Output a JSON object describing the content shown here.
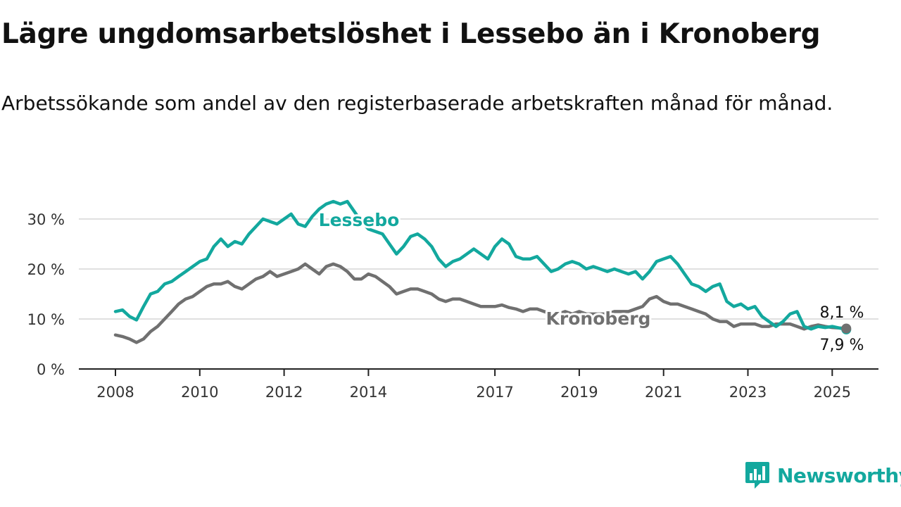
{
  "chart_data": {
    "type": "line",
    "title": "Lägre ungdomsarbetslöshet i Lessebo än i Kronoberg",
    "subtitle": "Arbetssökande som andel av den registerbaserade arbetskraften månad för månad.",
    "x_ticks": [
      "2008",
      "2010",
      "2012",
      "2014",
      "2017",
      "2019",
      "2021",
      "2023",
      "2025"
    ],
    "y_ticks": [
      "0 %",
      "10 %",
      "20 %",
      "30 %"
    ],
    "ylim": [
      0,
      30
    ],
    "grid": true,
    "series": [
      {
        "name": "Lessebo",
        "color": "#13a89e",
        "end_label": "7,9 %",
        "points": [
          [
            "2008-01",
            11.5
          ],
          [
            "2008-03",
            11.8
          ],
          [
            "2008-05",
            10.5
          ],
          [
            "2008-07",
            9.8
          ],
          [
            "2008-09",
            12.5
          ],
          [
            "2008-11",
            15.0
          ],
          [
            "2009-01",
            15.5
          ],
          [
            "2009-03",
            17.0
          ],
          [
            "2009-05",
            17.5
          ],
          [
            "2009-07",
            18.5
          ],
          [
            "2009-09",
            19.5
          ],
          [
            "2009-11",
            20.5
          ],
          [
            "2010-01",
            21.5
          ],
          [
            "2010-03",
            22.0
          ],
          [
            "2010-05",
            24.5
          ],
          [
            "2010-07",
            26.0
          ],
          [
            "2010-09",
            24.5
          ],
          [
            "2010-11",
            25.5
          ],
          [
            "2011-01",
            25.0
          ],
          [
            "2011-03",
            27.0
          ],
          [
            "2011-05",
            28.5
          ],
          [
            "2011-07",
            30.0
          ],
          [
            "2011-09",
            29.5
          ],
          [
            "2011-11",
            29.0
          ],
          [
            "2012-01",
            30.0
          ],
          [
            "2012-03",
            31.0
          ],
          [
            "2012-05",
            29.0
          ],
          [
            "2012-07",
            28.5
          ],
          [
            "2012-09",
            30.5
          ],
          [
            "2012-11",
            32.0
          ],
          [
            "2013-01",
            33.0
          ],
          [
            "2013-03",
            33.5
          ],
          [
            "2013-05",
            33.0
          ],
          [
            "2013-07",
            33.5
          ],
          [
            "2013-09",
            31.5
          ],
          [
            "2013-11",
            29.5
          ],
          [
            "2014-01",
            28.0
          ],
          [
            "2014-03",
            27.5
          ],
          [
            "2014-05",
            27.0
          ],
          [
            "2014-07",
            25.0
          ],
          [
            "2014-09",
            23.0
          ],
          [
            "2014-11",
            24.5
          ],
          [
            "2015-01",
            26.5
          ],
          [
            "2015-03",
            27.0
          ],
          [
            "2015-05",
            26.0
          ],
          [
            "2015-07",
            24.5
          ],
          [
            "2015-09",
            22.0
          ],
          [
            "2015-11",
            20.5
          ],
          [
            "2016-01",
            21.5
          ],
          [
            "2016-03",
            22.0
          ],
          [
            "2016-05",
            23.0
          ],
          [
            "2016-07",
            24.0
          ],
          [
            "2016-09",
            23.0
          ],
          [
            "2016-11",
            22.0
          ],
          [
            "2017-01",
            24.5
          ],
          [
            "2017-03",
            26.0
          ],
          [
            "2017-05",
            25.0
          ],
          [
            "2017-07",
            22.5
          ],
          [
            "2017-09",
            22.0
          ],
          [
            "2017-11",
            22.0
          ],
          [
            "2018-01",
            22.5
          ],
          [
            "2018-03",
            21.0
          ],
          [
            "2018-05",
            19.5
          ],
          [
            "2018-07",
            20.0
          ],
          [
            "2018-09",
            21.0
          ],
          [
            "2018-11",
            21.5
          ],
          [
            "2019-01",
            21.0
          ],
          [
            "2019-03",
            20.0
          ],
          [
            "2019-05",
            20.5
          ],
          [
            "2019-07",
            20.0
          ],
          [
            "2019-09",
            19.5
          ],
          [
            "2019-11",
            20.0
          ],
          [
            "2020-01",
            19.5
          ],
          [
            "2020-03",
            19.0
          ],
          [
            "2020-05",
            19.5
          ],
          [
            "2020-07",
            18.0
          ],
          [
            "2020-09",
            19.5
          ],
          [
            "2020-11",
            21.5
          ],
          [
            "2021-01",
            22.0
          ],
          [
            "2021-03",
            22.5
          ],
          [
            "2021-05",
            21.0
          ],
          [
            "2021-07",
            19.0
          ],
          [
            "2021-09",
            17.0
          ],
          [
            "2021-11",
            16.5
          ],
          [
            "2022-01",
            15.5
          ],
          [
            "2022-03",
            16.5
          ],
          [
            "2022-05",
            17.0
          ],
          [
            "2022-07",
            13.5
          ],
          [
            "2022-09",
            12.5
          ],
          [
            "2022-11",
            13.0
          ],
          [
            "2023-01",
            12.0
          ],
          [
            "2023-03",
            12.5
          ],
          [
            "2023-05",
            10.5
          ],
          [
            "2023-07",
            9.5
          ],
          [
            "2023-09",
            8.5
          ],
          [
            "2023-11",
            9.5
          ],
          [
            "2024-01",
            11.0
          ],
          [
            "2024-03",
            11.5
          ],
          [
            "2024-05",
            8.5
          ],
          [
            "2024-07",
            8.0
          ],
          [
            "2024-09",
            8.5
          ],
          [
            "2024-11",
            8.3
          ],
          [
            "2025-01",
            8.5
          ],
          [
            "2025-03",
            8.2
          ],
          [
            "2025-05",
            7.9
          ]
        ]
      },
      {
        "name": "Kronoberg",
        "color": "#707070",
        "end_label": "8,1 %",
        "points": [
          [
            "2008-01",
            6.8
          ],
          [
            "2008-03",
            6.5
          ],
          [
            "2008-05",
            6.0
          ],
          [
            "2008-07",
            5.3
          ],
          [
            "2008-09",
            6.0
          ],
          [
            "2008-11",
            7.5
          ],
          [
            "2009-01",
            8.5
          ],
          [
            "2009-03",
            10.0
          ],
          [
            "2009-05",
            11.5
          ],
          [
            "2009-07",
            13.0
          ],
          [
            "2009-09",
            14.0
          ],
          [
            "2009-11",
            14.5
          ],
          [
            "2010-01",
            15.5
          ],
          [
            "2010-03",
            16.5
          ],
          [
            "2010-05",
            17.0
          ],
          [
            "2010-07",
            17.0
          ],
          [
            "2010-09",
            17.5
          ],
          [
            "2010-11",
            16.5
          ],
          [
            "2011-01",
            16.0
          ],
          [
            "2011-03",
            17.0
          ],
          [
            "2011-05",
            18.0
          ],
          [
            "2011-07",
            18.5
          ],
          [
            "2011-09",
            19.5
          ],
          [
            "2011-11",
            18.5
          ],
          [
            "2012-01",
            19.0
          ],
          [
            "2012-03",
            19.5
          ],
          [
            "2012-05",
            20.0
          ],
          [
            "2012-07",
            21.0
          ],
          [
            "2012-09",
            20.0
          ],
          [
            "2012-11",
            19.0
          ],
          [
            "2013-01",
            20.5
          ],
          [
            "2013-03",
            21.0
          ],
          [
            "2013-05",
            20.5
          ],
          [
            "2013-07",
            19.5
          ],
          [
            "2013-09",
            18.0
          ],
          [
            "2013-11",
            18.0
          ],
          [
            "2014-01",
            19.0
          ],
          [
            "2014-03",
            18.5
          ],
          [
            "2014-05",
            17.5
          ],
          [
            "2014-07",
            16.5
          ],
          [
            "2014-09",
            15.0
          ],
          [
            "2014-11",
            15.5
          ],
          [
            "2015-01",
            16.0
          ],
          [
            "2015-03",
            16.0
          ],
          [
            "2015-05",
            15.5
          ],
          [
            "2015-07",
            15.0
          ],
          [
            "2015-09",
            14.0
          ],
          [
            "2015-11",
            13.5
          ],
          [
            "2016-01",
            14.0
          ],
          [
            "2016-03",
            14.0
          ],
          [
            "2016-05",
            13.5
          ],
          [
            "2016-07",
            13.0
          ],
          [
            "2016-09",
            12.5
          ],
          [
            "2016-11",
            12.5
          ],
          [
            "2017-01",
            12.5
          ],
          [
            "2017-03",
            12.8
          ],
          [
            "2017-05",
            12.3
          ],
          [
            "2017-07",
            12.0
          ],
          [
            "2017-09",
            11.5
          ],
          [
            "2017-11",
            12.0
          ],
          [
            "2018-01",
            12.0
          ],
          [
            "2018-03",
            11.5
          ],
          [
            "2018-05",
            11.0
          ],
          [
            "2018-07",
            11.0
          ],
          [
            "2018-09",
            11.5
          ],
          [
            "2018-11",
            11.0
          ],
          [
            "2019-01",
            11.5
          ],
          [
            "2019-03",
            11.0
          ],
          [
            "2019-05",
            11.0
          ],
          [
            "2019-07",
            11.0
          ],
          [
            "2019-09",
            11.0
          ],
          [
            "2019-11",
            11.5
          ],
          [
            "2020-01",
            11.5
          ],
          [
            "2020-03",
            11.5
          ],
          [
            "2020-05",
            12.0
          ],
          [
            "2020-07",
            12.5
          ],
          [
            "2020-09",
            14.0
          ],
          [
            "2020-11",
            14.5
          ],
          [
            "2021-01",
            13.5
          ],
          [
            "2021-03",
            13.0
          ],
          [
            "2021-05",
            13.0
          ],
          [
            "2021-07",
            12.5
          ],
          [
            "2021-09",
            12.0
          ],
          [
            "2021-11",
            11.5
          ],
          [
            "2022-01",
            11.0
          ],
          [
            "2022-03",
            10.0
          ],
          [
            "2022-05",
            9.5
          ],
          [
            "2022-07",
            9.5
          ],
          [
            "2022-09",
            8.5
          ],
          [
            "2022-11",
            9.0
          ],
          [
            "2023-01",
            9.0
          ],
          [
            "2023-03",
            9.0
          ],
          [
            "2023-05",
            8.5
          ],
          [
            "2023-07",
            8.5
          ],
          [
            "2023-09",
            9.0
          ],
          [
            "2023-11",
            9.0
          ],
          [
            "2024-01",
            9.0
          ],
          [
            "2024-03",
            8.5
          ],
          [
            "2024-05",
            8.0
          ],
          [
            "2024-07",
            8.5
          ],
          [
            "2024-09",
            8.8
          ],
          [
            "2024-11",
            8.5
          ],
          [
            "2025-01",
            8.3
          ],
          [
            "2025-03",
            8.2
          ],
          [
            "2025-05",
            8.1
          ]
        ]
      }
    ]
  },
  "brand": {
    "name": "Newsworthy"
  }
}
